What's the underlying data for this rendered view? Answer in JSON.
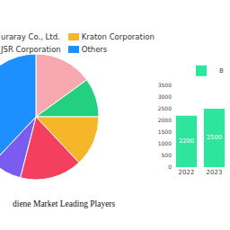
{
  "chart_data": [
    {
      "type": "pie",
      "title": "diene Market Leading Players",
      "categories": [
        "uraray Co., Ltd.",
        "JSR Corporation",
        "Kraton Corporation",
        null,
        null,
        "Others"
      ],
      "values": [
        15,
        10,
        13,
        16,
        8,
        38
      ],
      "colors": [
        "#f7a8b0",
        "#22d07f",
        "#f7b52a",
        "#f43f5e",
        "#7b5cf0",
        "#1e8fff"
      ],
      "legend": "top"
    },
    {
      "type": "bar",
      "categories": [
        "2022",
        "2023"
      ],
      "series": [
        {
          "name": "B",
          "color": "#2ee59d",
          "values": [
            2200,
            2500
          ]
        }
      ],
      "ylim": [
        0,
        3500
      ],
      "yticks": [
        0,
        500,
        1000,
        1500,
        2000,
        2500,
        3000,
        3500
      ],
      "grid": false,
      "data_labels": true,
      "legend": "top"
    }
  ]
}
